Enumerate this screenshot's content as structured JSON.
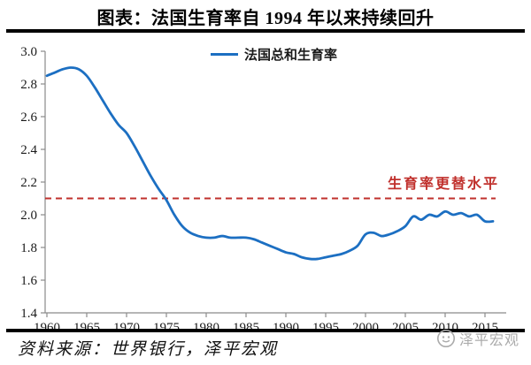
{
  "header": {
    "title": "图表：法国生育率自 1994 年以来持续回升"
  },
  "chart_data": {
    "type": "line",
    "title": "图表：法国生育率自 1994 年以来持续回升",
    "xlabel": "",
    "ylabel": "",
    "xlim": [
      1960,
      2017
    ],
    "ylim": [
      1.4,
      3.0
    ],
    "ytick_step": 0.2,
    "yticks": [
      3.0,
      2.8,
      2.6,
      2.4,
      2.2,
      2.0,
      1.8,
      1.6,
      1.4
    ],
    "xticks": [
      1960,
      1965,
      1970,
      1975,
      1980,
      1985,
      1990,
      1995,
      2000,
      2005,
      2010,
      2015
    ],
    "grid": false,
    "legend_position": "top-center",
    "x": [
      1960,
      1961,
      1962,
      1963,
      1964,
      1965,
      1966,
      1967,
      1968,
      1969,
      1970,
      1971,
      1972,
      1973,
      1974,
      1975,
      1976,
      1977,
      1978,
      1979,
      1980,
      1981,
      1982,
      1983,
      1984,
      1985,
      1986,
      1987,
      1988,
      1989,
      1990,
      1991,
      1992,
      1993,
      1994,
      1995,
      1996,
      1997,
      1998,
      1999,
      2000,
      2001,
      2002,
      2003,
      2004,
      2005,
      2006,
      2007,
      2008,
      2009,
      2010,
      2011,
      2012,
      2013,
      2014,
      2015,
      2016
    ],
    "series": [
      {
        "name": "法国总和生育率",
        "color": "#1C6FC2",
        "values": [
          2.85,
          2.87,
          2.89,
          2.9,
          2.89,
          2.85,
          2.78,
          2.7,
          2.62,
          2.55,
          2.5,
          2.42,
          2.33,
          2.24,
          2.16,
          2.09,
          2.0,
          1.93,
          1.89,
          1.87,
          1.86,
          1.86,
          1.87,
          1.86,
          1.86,
          1.86,
          1.85,
          1.83,
          1.81,
          1.79,
          1.77,
          1.76,
          1.74,
          1.73,
          1.73,
          1.74,
          1.75,
          1.76,
          1.78,
          1.81,
          1.88,
          1.89,
          1.87,
          1.88,
          1.9,
          1.93,
          1.99,
          1.97,
          2.0,
          1.99,
          2.02,
          2.0,
          2.01,
          1.99,
          2.0,
          1.96,
          1.96
        ]
      }
    ],
    "reference_line": {
      "value": 2.1,
      "label": "生育率更替水平",
      "color": "#C0302C",
      "style": "dashed"
    }
  },
  "colors": {
    "series_blue": "#1C6FC2",
    "reference_red": "#C0302C",
    "axis_gray": "#8a8a8a",
    "watermark_gray": "#ababab",
    "rule_black": "#000000"
  },
  "footer": {
    "source": "资料来源：世界银行，泽平宏观",
    "watermark": "泽平宏观"
  }
}
